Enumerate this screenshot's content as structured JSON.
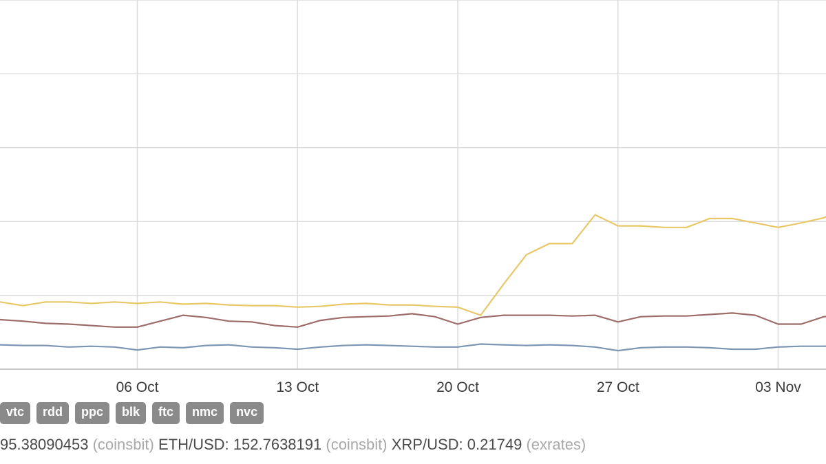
{
  "chart_data": {
    "type": "line",
    "title": "",
    "xlabel": "",
    "ylabel": "",
    "grid": true,
    "x_ticks": [
      "06 Oct",
      "13 Oct",
      "20 Oct",
      "27 Oct",
      "03 Nov"
    ],
    "x": [
      "2019-09-30",
      "2019-10-01",
      "2019-10-02",
      "2019-10-03",
      "2019-10-04",
      "2019-10-05",
      "2019-10-06",
      "2019-10-07",
      "2019-10-08",
      "2019-10-09",
      "2019-10-10",
      "2019-10-11",
      "2019-10-12",
      "2019-10-13",
      "2019-10-14",
      "2019-10-15",
      "2019-10-16",
      "2019-10-17",
      "2019-10-18",
      "2019-10-19",
      "2019-10-20",
      "2019-10-21",
      "2019-10-22",
      "2019-10-23",
      "2019-10-24",
      "2019-10-25",
      "2019-10-26",
      "2019-10-27",
      "2019-10-28",
      "2019-10-29",
      "2019-10-30",
      "2019-10-31",
      "2019-11-01",
      "2019-11-02",
      "2019-11-03",
      "2019-11-04",
      "2019-11-05",
      "2019-11-06"
    ],
    "ylim": [
      0,
      5
    ],
    "y_gridlines": [
      1,
      2,
      3,
      4,
      5
    ],
    "series": [
      {
        "color": "#e8c766",
        "values": [
          0.91,
          0.86,
          0.91,
          0.91,
          0.89,
          0.91,
          0.89,
          0.91,
          0.88,
          0.89,
          0.87,
          0.86,
          0.86,
          0.84,
          0.85,
          0.88,
          0.89,
          0.87,
          0.87,
          0.85,
          0.84,
          0.73,
          1.15,
          1.55,
          1.7,
          1.7,
          2.09,
          1.94,
          1.94,
          1.92,
          1.92,
          2.04,
          2.04,
          1.98,
          1.92,
          1.98,
          2.05,
          2.2
        ]
      },
      {
        "color": "#9e6c68",
        "values": [
          0.67,
          0.65,
          0.62,
          0.61,
          0.59,
          0.57,
          0.57,
          0.65,
          0.73,
          0.7,
          0.65,
          0.64,
          0.59,
          0.57,
          0.66,
          0.7,
          0.71,
          0.72,
          0.75,
          0.71,
          0.61,
          0.7,
          0.73,
          0.73,
          0.73,
          0.72,
          0.73,
          0.64,
          0.71,
          0.72,
          0.72,
          0.74,
          0.76,
          0.73,
          0.61,
          0.61,
          0.71,
          0.73
        ]
      },
      {
        "color": "#7d96b4",
        "values": [
          0.33,
          0.32,
          0.32,
          0.3,
          0.31,
          0.3,
          0.26,
          0.3,
          0.29,
          0.32,
          0.33,
          0.3,
          0.29,
          0.27,
          0.3,
          0.32,
          0.33,
          0.32,
          0.31,
          0.3,
          0.3,
          0.34,
          0.33,
          0.32,
          0.33,
          0.32,
          0.3,
          0.25,
          0.29,
          0.3,
          0.3,
          0.29,
          0.27,
          0.27,
          0.3,
          0.31,
          0.31,
          0.32
        ]
      }
    ]
  },
  "coin_tags": [
    "vtc",
    "rdd",
    "ppc",
    "blk",
    "ftc",
    "nmc",
    "nvc"
  ],
  "ticker": {
    "btc_value": "95.38090453",
    "btc_source": "(coinsbit)",
    "eth_label": "ETH/USD:",
    "eth_value": "152.7638191",
    "eth_source": "(coinsbit)",
    "xrp_label": "XRP/USD:",
    "xrp_value": "0.21749",
    "xrp_source": "(exrates)"
  }
}
